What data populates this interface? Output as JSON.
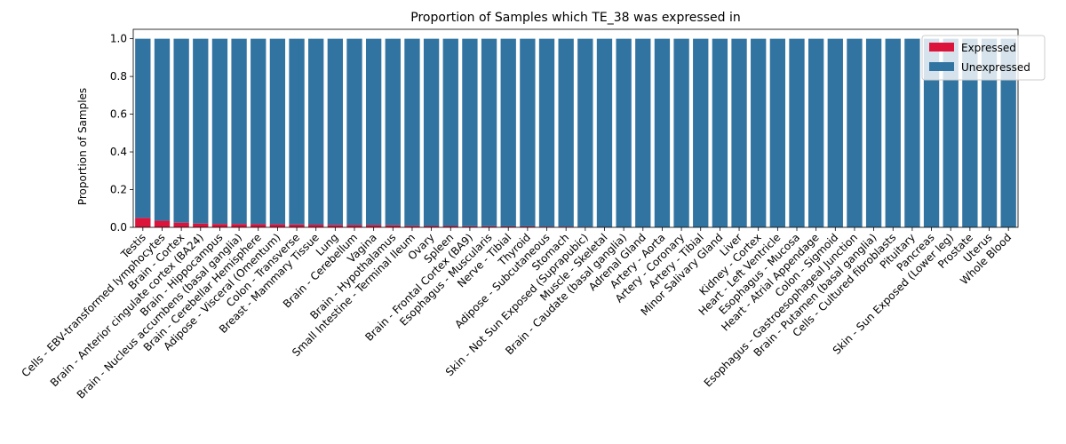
{
  "chart_data": {
    "type": "bar",
    "stacked": true,
    "title": "Proportion of Samples which TE_38 was expressed in",
    "xlabel": "",
    "ylabel": "Proportion of Samples",
    "ylim": [
      0,
      1.05
    ],
    "yticks": [
      "0.0",
      "0.2",
      "0.4",
      "0.6",
      "0.8",
      "1.0"
    ],
    "legend_position": "top-right",
    "categories": [
      "Testis",
      "Cells - EBV-transformed lymphocytes",
      "Brain - Cortex",
      "Brain - Anterior cingulate cortex (BA24)",
      "Brain - Hippocampus",
      "Brain - Nucleus accumbens (basal ganglia)",
      "Brain - Cerebellar Hemisphere",
      "Adipose - Visceral (Omentum)",
      "Colon - Transverse",
      "Breast - Mammary Tissue",
      "Lung",
      "Brain - Cerebellum",
      "Vagina",
      "Brain - Hypothalamus",
      "Small Intestine - Terminal Ileum",
      "Ovary",
      "Spleen",
      "Brain - Frontal Cortex (BA9)",
      "Esophagus - Muscularis",
      "Nerve - Tibial",
      "Thyroid",
      "Adipose - Subcutaneous",
      "Stomach",
      "Skin - Not Sun Exposed (Suprapubic)",
      "Muscle - Skeletal",
      "Brain - Caudate (basal ganglia)",
      "Adrenal Gland",
      "Artery - Aorta",
      "Artery - Coronary",
      "Artery - Tibial",
      "Minor Salivary Gland",
      "Liver",
      "Kidney - Cortex",
      "Heart - Left Ventricle",
      "Esophagus - Mucosa",
      "Heart - Atrial Appendage",
      "Colon - Sigmoid",
      "Esophagus - Gastroesophageal Junction",
      "Brain - Putamen (basal ganglia)",
      "Cells - Cultured fibroblasts",
      "Pituitary",
      "Pancreas",
      "Skin - Sun Exposed (Lower leg)",
      "Prostate",
      "Uterus",
      "Whole Blood"
    ],
    "series": [
      {
        "name": "Expressed",
        "color": "#dc143c",
        "values": [
          0.05,
          0.035,
          0.025,
          0.02,
          0.018,
          0.018,
          0.017,
          0.016,
          0.015,
          0.014,
          0.013,
          0.012,
          0.012,
          0.011,
          0.008,
          0.007,
          0.007,
          0.006,
          0.006,
          0.005,
          0.005,
          0.004,
          0.004,
          0.003,
          0.002,
          0.0,
          0.0,
          0.0,
          0.0,
          0.0,
          0.0,
          0.0,
          0.0,
          0.0,
          0.0,
          0.0,
          0.0,
          0.0,
          0.0,
          0.0,
          0.0,
          0.0,
          0.0,
          0.0,
          0.0,
          0.0
        ]
      },
      {
        "name": "Unexpressed",
        "color": "#3274a1",
        "values": [
          0.95,
          0.965,
          0.975,
          0.98,
          0.982,
          0.982,
          0.983,
          0.984,
          0.985,
          0.986,
          0.987,
          0.988,
          0.988,
          0.989,
          0.992,
          0.993,
          0.993,
          0.994,
          0.994,
          0.995,
          0.995,
          0.996,
          0.996,
          0.997,
          0.998,
          1.0,
          1.0,
          1.0,
          1.0,
          1.0,
          1.0,
          1.0,
          1.0,
          1.0,
          1.0,
          1.0,
          1.0,
          1.0,
          1.0,
          1.0,
          1.0,
          1.0,
          1.0,
          1.0,
          1.0,
          1.0
        ]
      }
    ]
  }
}
